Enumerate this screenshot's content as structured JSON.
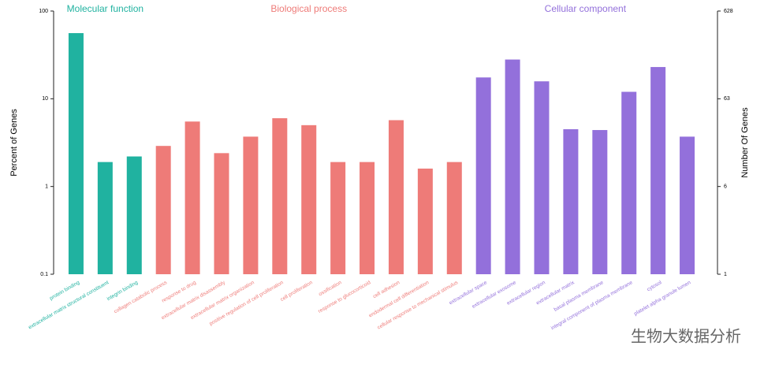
{
  "chart_data": {
    "type": "bar",
    "y_label": "Percent of Genes",
    "y2_label": "Number Of Genes",
    "log_scale": true,
    "ylim": [
      0.1,
      100
    ],
    "yticks": [
      100,
      10,
      1,
      0.1
    ],
    "y2lim": [
      0.628,
      628
    ],
    "y2ticks": [
      628,
      {
        "value": 62.8,
        "label": "63"
      },
      {
        "value": 6.28,
        "label": "6"
      },
      {
        "value": 0.628,
        "label": "1"
      }
    ],
    "categories": [
      "protein binding",
      "extracellular matrix structural constituent",
      "integrin binding",
      "collagen catabolic process",
      "response to drug",
      "extracellular matrix disassembly",
      "extracellular matrix organization",
      "positive regulation of cell proliferation",
      "cell proliferation",
      "ossification",
      "response to glucocorticoid",
      "cell adhesion",
      "endodermal cell differentiation",
      "cellular response to mechanical stimulus",
      "extracellular space",
      "extracellular exosome",
      "extracellular region",
      "extracellular matrix",
      "basal plasma membrane",
      "integral component of plasma membrane",
      "cytosol",
      "platelet alpha granule lumen"
    ],
    "series": [
      {
        "name": "Molecular function",
        "color": "#20b2a0",
        "values": [
          56,
          1.9,
          2.2,
          null,
          null,
          null,
          null,
          null,
          null,
          null,
          null,
          null,
          null,
          null,
          null,
          null,
          null,
          null,
          null,
          null,
          null,
          null
        ]
      },
      {
        "name": "Biological process",
        "color": "#ee7b78",
        "values": [
          null,
          null,
          null,
          2.9,
          5.5,
          2.4,
          3.7,
          6.0,
          5.0,
          1.9,
          1.9,
          5.7,
          1.6,
          1.9,
          null,
          null,
          null,
          null,
          null,
          null,
          null,
          null
        ]
      },
      {
        "name": "Cellular component",
        "color": "#9370db",
        "values": [
          null,
          null,
          null,
          null,
          null,
          null,
          null,
          null,
          null,
          null,
          null,
          null,
          null,
          null,
          17.5,
          28,
          15.8,
          4.5,
          4.4,
          12,
          23,
          3.7
        ]
      }
    ],
    "watermark": "生物大数据分析"
  }
}
